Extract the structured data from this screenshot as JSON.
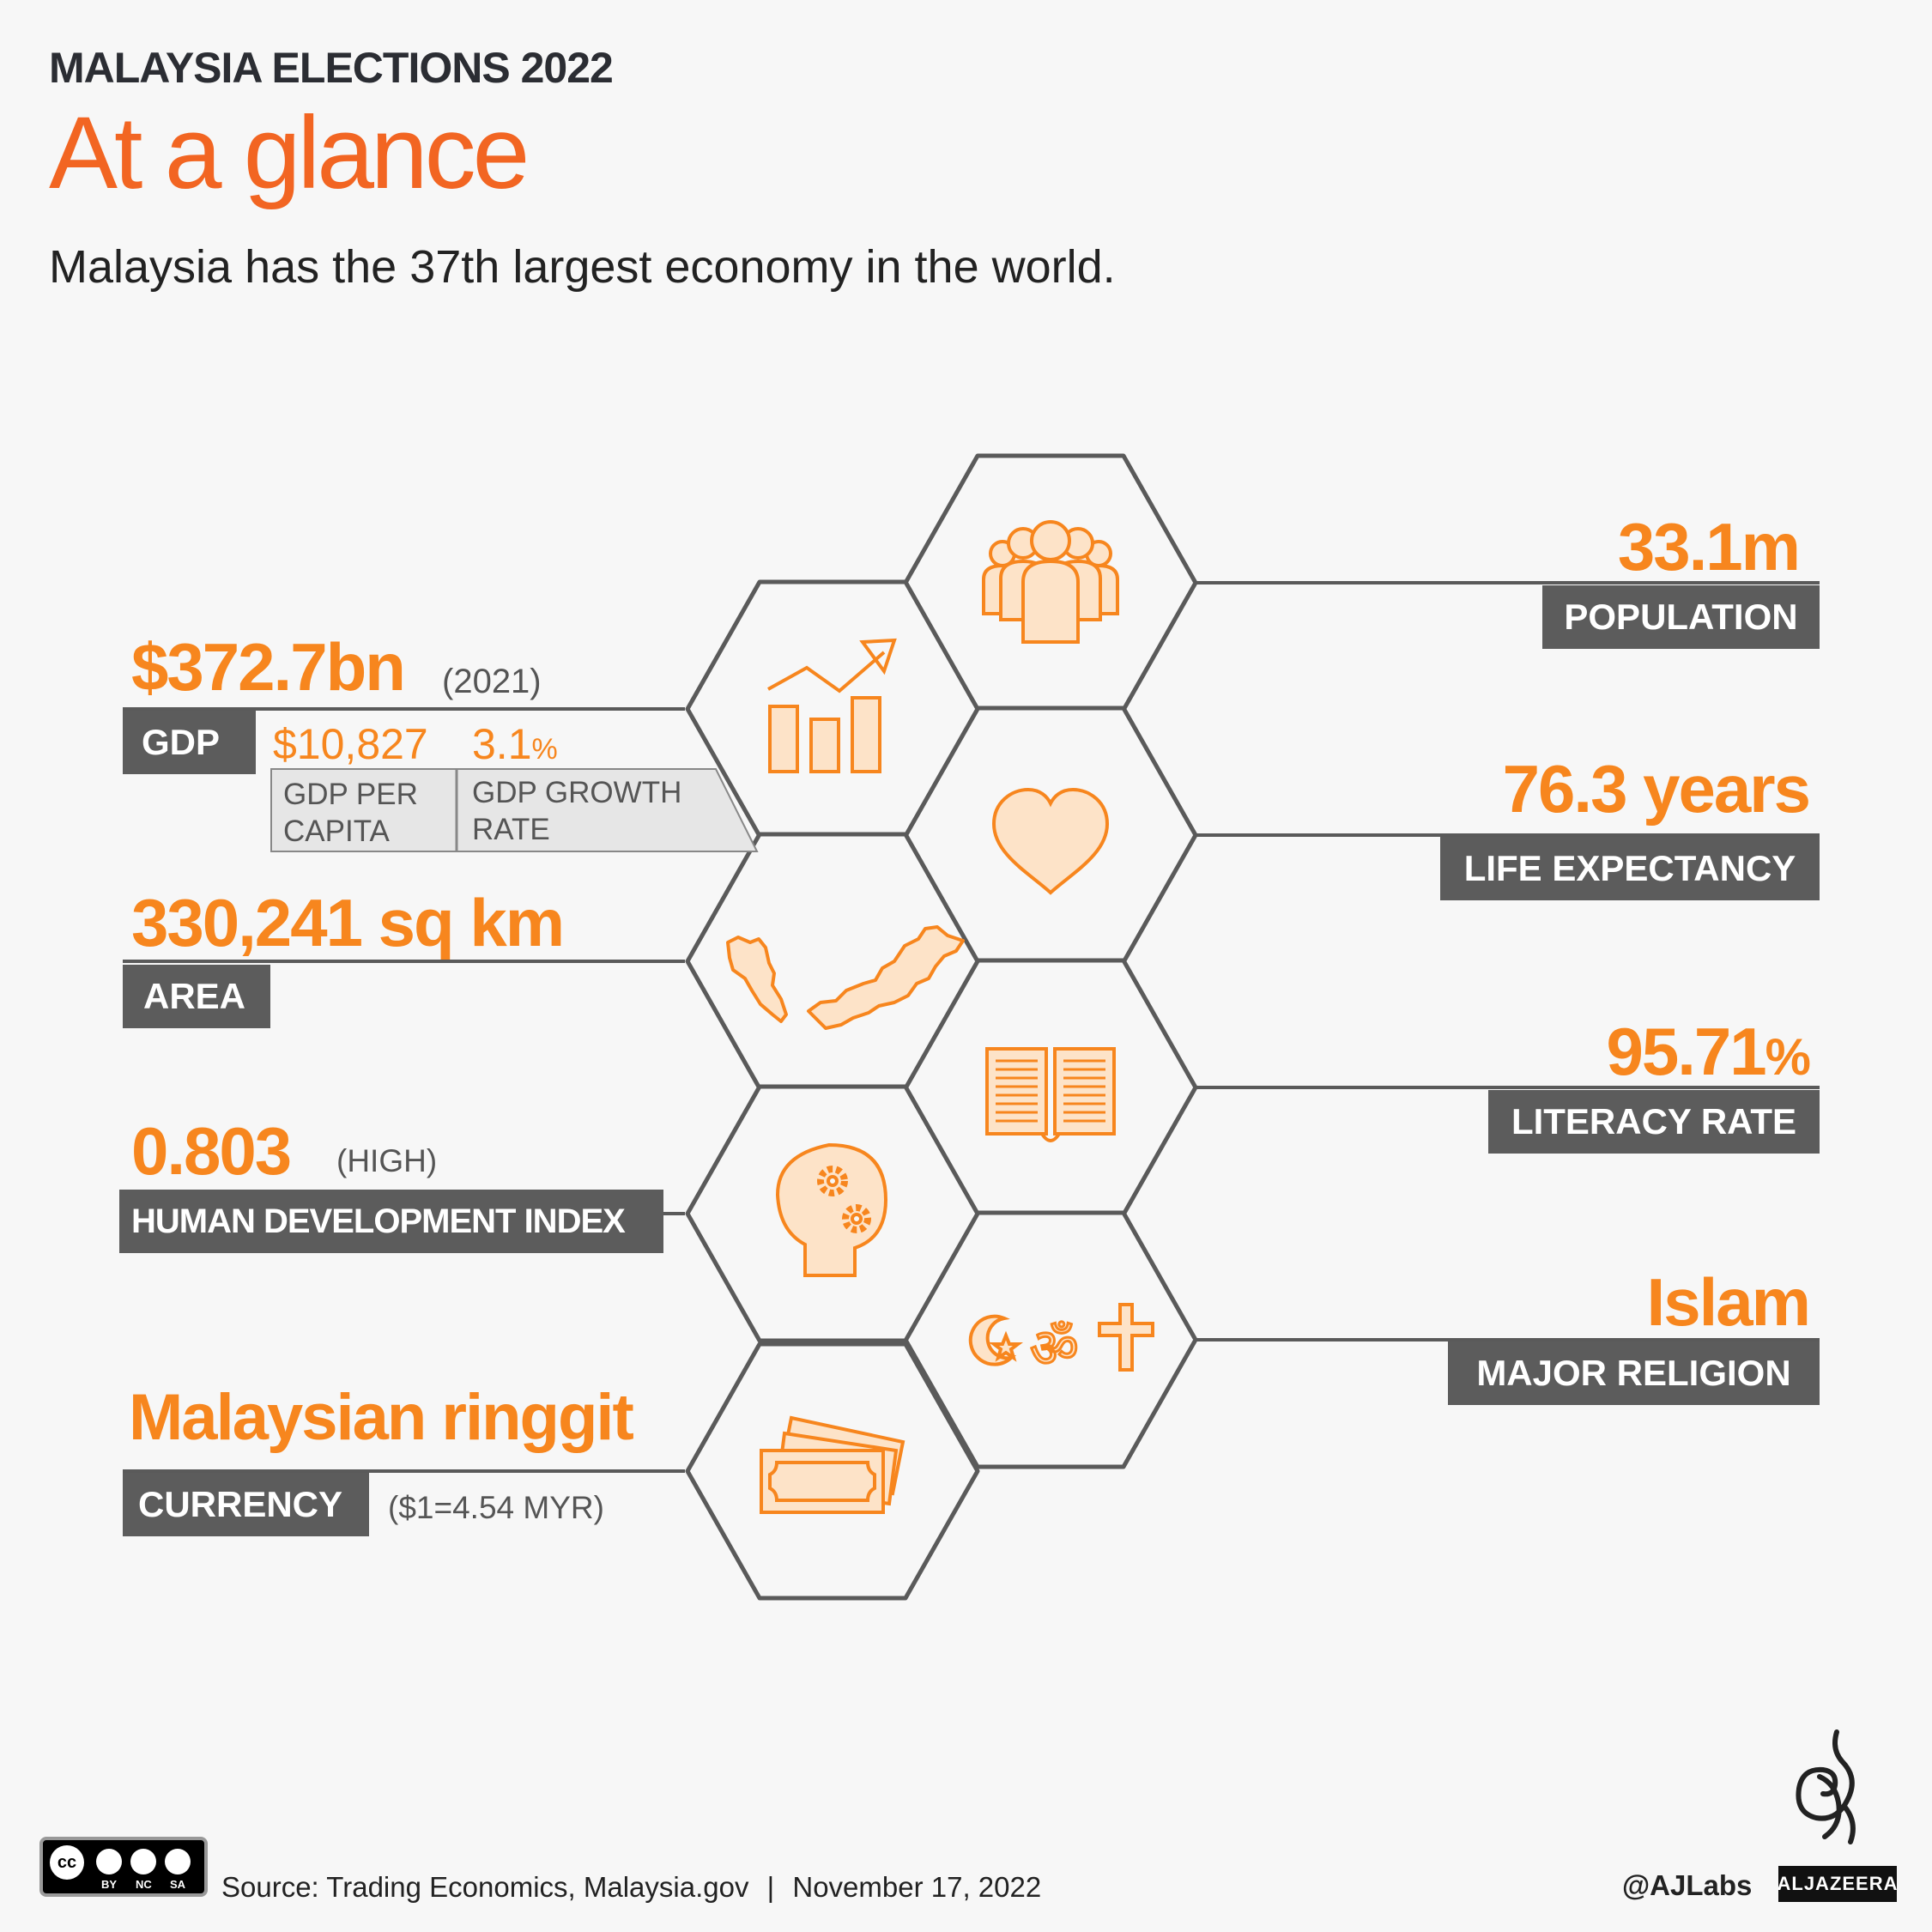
{
  "header": {
    "kicker": "MALAYSIA ELECTIONS 2022",
    "title": "At a glance",
    "subtitle": "Malaysia has the 37th largest economy in the world."
  },
  "left_stats": {
    "gdp": {
      "value": "$372.7bn",
      "note": "(2021)",
      "label": "GDP",
      "per_capita": {
        "value": "$10,827",
        "label": "GDP PER CAPITA"
      },
      "growth": {
        "value": "3.1",
        "unit": "%",
        "label": "GDP GROWTH RATE"
      }
    },
    "area": {
      "value": "330,241 sq km",
      "label": "AREA"
    },
    "hdi": {
      "value": "0.803",
      "note": "(HIGH)",
      "label": "HUMAN DEVELOPMENT INDEX"
    },
    "currency": {
      "value": "Malaysian ringgit",
      "label": "CURRENCY",
      "note": "($1=4.54 MYR)"
    }
  },
  "right_stats": {
    "population": {
      "value": "33.1m",
      "label": "POPULATION"
    },
    "life": {
      "value": "76.3 years",
      "label": "LIFE EXPECTANCY"
    },
    "literacy": {
      "value": "95.71",
      "unit": "%",
      "label": "LITERACY RATE"
    },
    "religion": {
      "value": "Islam",
      "label": "MAJOR RELIGION"
    }
  },
  "icons": [
    "people-icon",
    "bar-chart-icon",
    "heart-icon",
    "malaysia-map-icon",
    "book-icon",
    "head-gears-icon",
    "religion-symbols-icon",
    "money-icon"
  ],
  "colors": {
    "accent": "#f7861e",
    "headline": "#f26522",
    "label_bg": "#5c5c5c",
    "line": "#5a5a5a",
    "background": "#f7f7f7"
  },
  "footer": {
    "license": [
      "BY",
      "NC",
      "SA"
    ],
    "source": "Source: Trading Economics, Malaysia.gov",
    "separator": "|",
    "date": "November 17, 2022",
    "handle": "@AJLabs",
    "brand": "ALJAZEERA"
  }
}
